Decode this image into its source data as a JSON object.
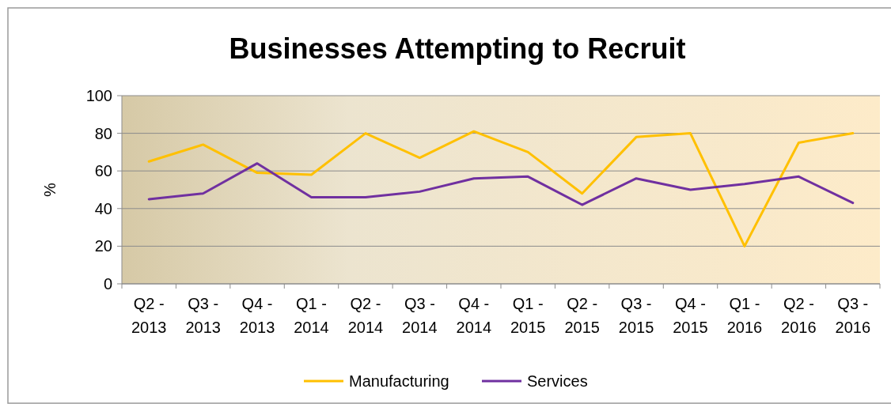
{
  "chart_data": {
    "type": "line",
    "title": "Businesses Attempting to Recruit",
    "ylabel": "%",
    "categories": [
      "Q2 - 2013",
      "Q3 - 2013",
      "Q4 - 2013",
      "Q1 - 2014",
      "Q2 - 2014",
      "Q3 - 2014",
      "Q4 - 2014",
      "Q1 - 2015",
      "Q2 - 2015",
      "Q3 - 2015",
      "Q4 - 2015",
      "Q1 - 2016",
      "Q2 - 2016",
      "Q3 - 2016"
    ],
    "series": [
      {
        "name": "Manufacturing",
        "color": "#ffc000",
        "values": [
          65,
          74,
          59,
          58,
          80,
          67,
          81,
          70,
          48,
          78,
          80,
          20,
          75,
          80
        ]
      },
      {
        "name": "Services",
        "color": "#7030a0",
        "values": [
          45,
          48,
          64,
          46,
          46,
          49,
          56,
          57,
          42,
          56,
          50,
          53,
          57,
          43
        ]
      }
    ],
    "ylim": [
      0,
      100
    ],
    "yticks": [
      0,
      20,
      40,
      60,
      80,
      100
    ],
    "grid": "y",
    "legend": "bottom",
    "marker": "none",
    "line_style": "solid"
  }
}
